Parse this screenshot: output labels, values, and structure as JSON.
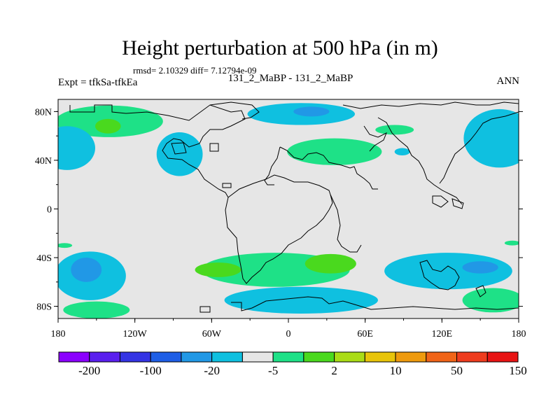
{
  "chart_data": {
    "type": "heatmap",
    "title": "Height perturbation at 500 hPa (in m)",
    "stats": "rmsd= 2.10329 diff= 7.12794e-09",
    "left_label": "Expt = tfkSa-tfkEa",
    "center_label": "131_2_MaBP - 131_2_MaBP",
    "right_label": "ANN",
    "x_range": [
      -180,
      180
    ],
    "y_range": [
      -90,
      90
    ],
    "x_ticks": [
      {
        "value": -180,
        "label": "180"
      },
      {
        "value": -120,
        "label": "120W"
      },
      {
        "value": -60,
        "label": "60W"
      },
      {
        "value": 0,
        "label": "0"
      },
      {
        "value": 60,
        "label": "60E"
      },
      {
        "value": 120,
        "label": "120E"
      },
      {
        "value": 180,
        "label": "180"
      }
    ],
    "y_ticks": [
      {
        "value": 80,
        "label": "80N"
      },
      {
        "value": 40,
        "label": "40N"
      },
      {
        "value": 0,
        "label": "0"
      },
      {
        "value": -40,
        "label": "40S"
      },
      {
        "value": -80,
        "label": "80S"
      }
    ],
    "colorbar": {
      "colors": [
        "#8b00ff",
        "#5a1fee",
        "#3434e4",
        "#1e5ee6",
        "#2198e6",
        "#0fc0e0",
        "#e6e6e6",
        "#1ee187",
        "#4ad91e",
        "#aadc16",
        "#e8c40a",
        "#ee9a0e",
        "#f06418",
        "#ee3c1e",
        "#e81414"
      ],
      "labels": [
        {
          "boundary": 1,
          "text": "-200"
        },
        {
          "boundary": 3,
          "text": "-100"
        },
        {
          "boundary": 5,
          "text": "-20"
        },
        {
          "boundary": 7,
          "text": "-5"
        },
        {
          "boundary": 9,
          "text": "2"
        },
        {
          "boundary": 11,
          "text": "10"
        },
        {
          "boundary": 13,
          "text": "50"
        },
        {
          "boundary": 15,
          "text": "150"
        }
      ]
    },
    "regions": [
      {
        "name": "arctic-asia-low",
        "level": "neg",
        "lon": 10,
        "lat": 78,
        "rlon": 42,
        "rlat": 9
      },
      {
        "name": "arctic-asia-core",
        "level": "neg2",
        "lon": 18,
        "lat": 80,
        "rlon": 14,
        "rlat": 4
      },
      {
        "name": "nw-pacific-high",
        "level": "pos",
        "lon": -140,
        "lat": 72,
        "rlon": 42,
        "rlat": 13
      },
      {
        "name": "nw-pacific-core",
        "level": "pos2",
        "lon": -141,
        "lat": 68,
        "rlon": 10,
        "rlat": 6
      },
      {
        "name": "ne-pacific-low",
        "level": "neg",
        "lon": -173,
        "lat": 50,
        "rlon": 22,
        "rlat": 18
      },
      {
        "name": "n-america-low",
        "level": "neg",
        "lon": -85,
        "lat": 45,
        "rlon": 18,
        "rlat": 18
      },
      {
        "name": "eurasia-high",
        "level": "pos",
        "lon": 36,
        "lat": 47,
        "rlon": 37,
        "rlat": 11
      },
      {
        "name": "siberia-high",
        "level": "pos",
        "lon": 83,
        "lat": 65,
        "rlon": 15,
        "rlat": 4
      },
      {
        "name": "small-low",
        "level": "neg",
        "lon": 89,
        "lat": 47,
        "rlon": 6,
        "rlat": 3
      },
      {
        "name": "ne-low",
        "level": "neg",
        "lon": 165,
        "lat": 58,
        "rlon": 28,
        "rlat": 24
      },
      {
        "name": "s-band-high",
        "level": "pos",
        "lon": -10,
        "lat": -50,
        "rlon": 58,
        "rlat": 14
      },
      {
        "name": "s-high-core-w",
        "level": "pos2",
        "lon": -55,
        "lat": -50,
        "rlon": 18,
        "rlat": 6
      },
      {
        "name": "s-high-core-e",
        "level": "pos2",
        "lon": 33,
        "lat": -45,
        "rlon": 20,
        "rlat": 8
      },
      {
        "name": "s-pacific-low",
        "level": "neg",
        "lon": -155,
        "lat": -55,
        "rlon": 28,
        "rlat": 20
      },
      {
        "name": "s-pacific-core",
        "level": "neg2",
        "lon": -158,
        "lat": -50,
        "rlon": 12,
        "rlat": 10
      },
      {
        "name": "s-indian-low",
        "level": "neg",
        "lon": 125,
        "lat": -51,
        "rlon": 50,
        "rlat": 15
      },
      {
        "name": "s-indian-core",
        "level": "neg2",
        "lon": 150,
        "lat": -48,
        "rlon": 14,
        "rlat": 5
      },
      {
        "name": "antarctic-low",
        "level": "neg",
        "lon": 10,
        "lat": -75,
        "rlon": 60,
        "rlat": 11
      },
      {
        "name": "sw-high",
        "level": "pos",
        "lon": -150,
        "lat": -83,
        "rlon": 26,
        "rlat": 7
      },
      {
        "name": "se-high",
        "level": "pos",
        "lon": 160,
        "lat": -75,
        "rlon": 24,
        "rlat": 10
      },
      {
        "name": "equator-w-fringe",
        "level": "pos",
        "lon": -175,
        "lat": -30,
        "rlon": 6,
        "rlat": 2
      },
      {
        "name": "equator-e-fringe",
        "level": "pos",
        "lon": 175,
        "lat": -28,
        "rlon": 6,
        "rlat": 2
      }
    ]
  }
}
